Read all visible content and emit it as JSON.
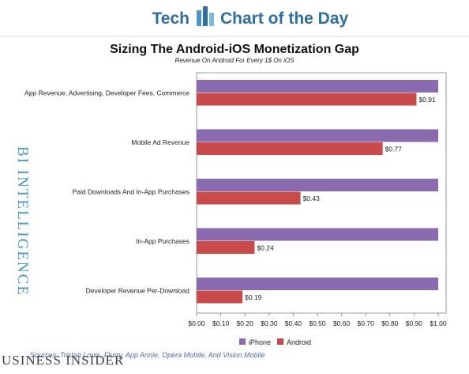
{
  "header": {
    "left_text": "Tech",
    "right_text": "Chart of the Day",
    "accent_color": "#2f6f9f",
    "logo_icon": "bar-chart-icon"
  },
  "chart_data": {
    "type": "bar",
    "orientation": "horizontal",
    "title": "Sizing The Android-iOS Monetization Gap",
    "subtitle": "Revenue On Android For Every 1$ On iOS",
    "categories": [
      "App Revenue, Advertising, Developer Fees, Commerce",
      "Mobile Ad Revenue",
      "Paid Downloads And In-App Purchases",
      "In-App Purchases",
      "Developer Revenue Per-Download"
    ],
    "series": [
      {
        "name": "iPhone",
        "color": "#8a6bb0",
        "values": [
          1.0,
          1.0,
          1.0,
          1.0,
          1.0
        ]
      },
      {
        "name": "Android",
        "color": "#c84a4a",
        "values": [
          0.91,
          0.77,
          0.43,
          0.24,
          0.19
        ]
      }
    ],
    "data_labels": {
      "Android": [
        "$0.91",
        "$0.77",
        "$0.43",
        "$0.24",
        "$0.19"
      ]
    },
    "x_ticks": [
      "$0.00",
      "$0.10",
      "$0.20",
      "$0.30",
      "$0.40",
      "$0.50",
      "$0.60",
      "$0.70",
      "$0.80",
      "$0.90",
      "$1.00"
    ],
    "xlim": [
      0,
      1.0
    ],
    "grid": false,
    "legend_position": "bottom"
  },
  "side_label": "BI INTELLIGENCE",
  "footer": {
    "sources": "Sources: Tristan Louis, Flurry, App Annie, Opera Mobile, And Vision Mobile",
    "brand": "USINESS INSIDER"
  }
}
